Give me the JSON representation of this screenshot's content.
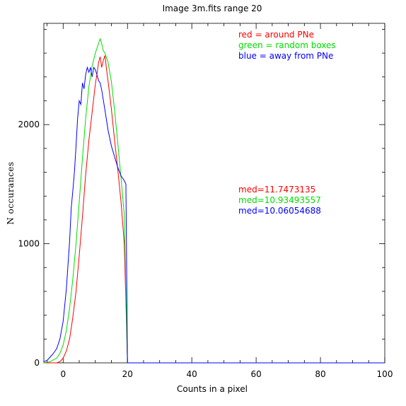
{
  "chart_data": {
    "type": "line",
    "title": "Image 3m.fits   range 20",
    "xlabel": "Counts in a pixel",
    "ylabel": "N occurances",
    "xlim": [
      -6,
      100
    ],
    "ylim": [
      0,
      2850
    ],
    "x_ticks": [
      0,
      20,
      40,
      60,
      80,
      100
    ],
    "y_ticks": [
      0,
      1000,
      2000
    ],
    "grid": false,
    "legend": "top-right",
    "legend_entries": [
      {
        "text": "red = around PNe",
        "color": "#ff0000"
      },
      {
        "text": "green = random boxes",
        "color": "#00dd00"
      },
      {
        "text": "blue = away from PNe",
        "color": "#0000ff"
      }
    ],
    "annotations": [
      {
        "text": "med=11.7473135",
        "color": "#ff0000"
      },
      {
        "text": "med=10.93493557",
        "color": "#00dd00"
      },
      {
        "text": "med=10.06054688",
        "color": "#0000ff"
      }
    ],
    "series": [
      {
        "name": "red = around PNe",
        "color": "#ff0000",
        "x": [
          -6,
          -4,
          -2,
          -1,
          0,
          1,
          2,
          3,
          4,
          5,
          6,
          7,
          8,
          9,
          9.5,
          10,
          10.5,
          11,
          11.5,
          12,
          12.5,
          13,
          13.5,
          14,
          15,
          16,
          17,
          18,
          19,
          19.5,
          20,
          21,
          30,
          50,
          70,
          100
        ],
        "y": [
          0,
          0,
          0,
          10,
          40,
          100,
          200,
          380,
          600,
          900,
          1230,
          1580,
          1870,
          2100,
          2220,
          2340,
          2420,
          2520,
          2570,
          2480,
          2540,
          2580,
          2460,
          2360,
          2130,
          1870,
          1620,
          1350,
          1000,
          500,
          0,
          0,
          0,
          0,
          0,
          0
        ]
      },
      {
        "name": "green = random boxes",
        "color": "#00dd00",
        "x": [
          -6,
          -4,
          -2,
          -1,
          0,
          1,
          2,
          3,
          4,
          5,
          6,
          7,
          8,
          9,
          10,
          10.5,
          11,
          11.5,
          12,
          12.5,
          13,
          14,
          15,
          16,
          17,
          18,
          19,
          19.5,
          20,
          21,
          30,
          50,
          70,
          100
        ],
        "y": [
          0,
          10,
          40,
          80,
          150,
          270,
          460,
          700,
          1000,
          1350,
          1720,
          2050,
          2320,
          2490,
          2600,
          2640,
          2680,
          2720,
          2680,
          2620,
          2600,
          2520,
          2360,
          2120,
          1840,
          1550,
          1240,
          600,
          0,
          0,
          0,
          0,
          0,
          0
        ]
      },
      {
        "name": "blue = away from PNe",
        "color": "#0000ff",
        "x": [
          -6,
          -5,
          -4,
          -3,
          -2,
          -1,
          0,
          1,
          2,
          2.5,
          3,
          3.5,
          4,
          4.5,
          5,
          5.5,
          6,
          6.5,
          7,
          7.5,
          8,
          8.5,
          9,
          9.5,
          10,
          10.5,
          11,
          11.5,
          12,
          13,
          14,
          15,
          16,
          17,
          18,
          19,
          19.5,
          20,
          21,
          30,
          50,
          70,
          100
        ],
        "y": [
          10,
          20,
          50,
          80,
          120,
          200,
          350,
          620,
          1020,
          1300,
          1440,
          1600,
          1820,
          2050,
          2200,
          2170,
          2350,
          2300,
          2420,
          2480,
          2440,
          2480,
          2400,
          2480,
          2460,
          2420,
          2370,
          2350,
          2290,
          2120,
          1950,
          1820,
          1730,
          1640,
          1570,
          1530,
          1500,
          0,
          0,
          0,
          0,
          0,
          0
        ]
      }
    ]
  }
}
